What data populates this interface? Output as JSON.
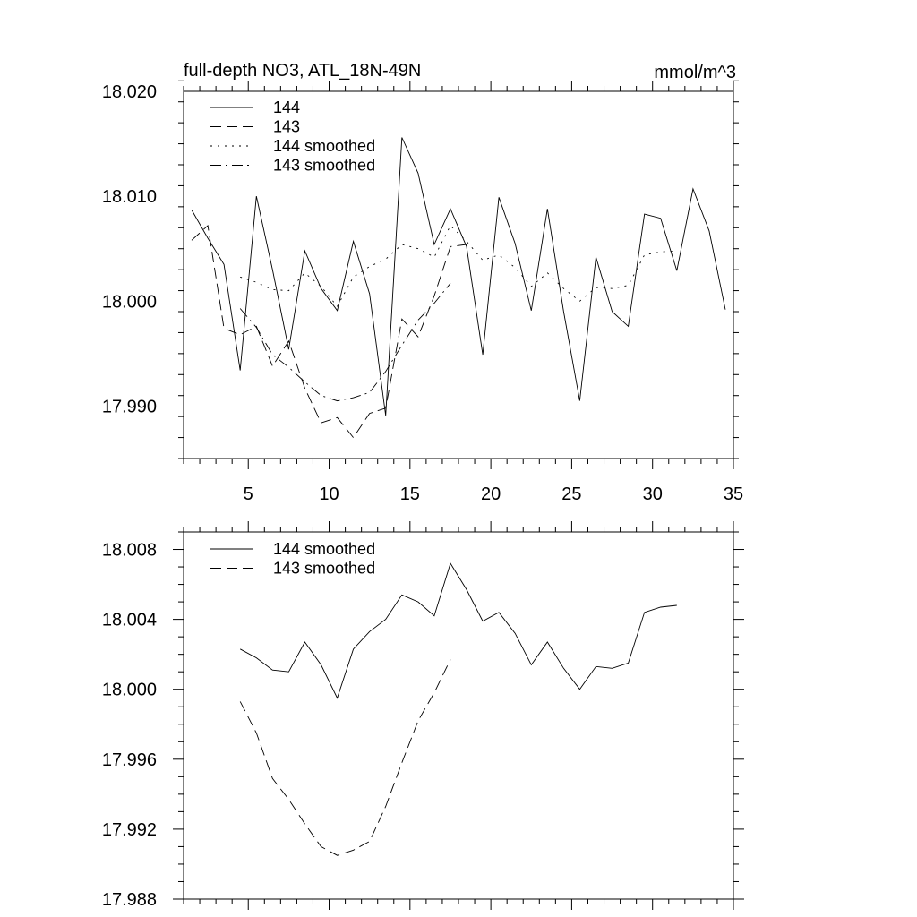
{
  "chart_data": [
    {
      "type": "line",
      "title": "full-depth NO3, ATL_18N-49N",
      "units": "mmol/m^3",
      "xlim": [
        1,
        35
      ],
      "ylim": [
        17.985,
        18.02
      ],
      "xticks": [
        "5",
        "10",
        "15",
        "20",
        "25",
        "30",
        "35"
      ],
      "yticks": [
        "17.990",
        "18.000",
        "18.010",
        "18.020"
      ],
      "legend_position": "top-left",
      "series": [
        {
          "name": "144",
          "style": "solid",
          "x": [
            1.5,
            2.5,
            3.5,
            4.5,
            5.5,
            6.5,
            7.5,
            8.5,
            9.5,
            10.5,
            11.5,
            12.5,
            13.5,
            14.5,
            15.5,
            16.5,
            17.5,
            18.5,
            19.5,
            20.5,
            21.5,
            22.5,
            23.5,
            24.5,
            25.5,
            26.5,
            27.5,
            28.5,
            29.5,
            30.5,
            31.5,
            32.5,
            33.5,
            34.5
          ],
          "values": [
            18.0087,
            18.006,
            18.0035,
            17.9934,
            18.01,
            18.003,
            17.9954,
            18.0048,
            18.0012,
            17.9991,
            18.0057,
            18.0007,
            17.9891,
            18.0156,
            18.0122,
            18.0054,
            18.0088,
            18.0052,
            17.9949,
            18.0099,
            18.0055,
            17.9991,
            18.0088,
            17.999,
            17.9905,
            18.0042,
            17.999,
            17.9976,
            18.0083,
            18.0079,
            18.0029,
            18.0107,
            18.0067,
            17.9992
          ]
        },
        {
          "name": "143",
          "style": "dashed",
          "x": [
            1.5,
            2.5,
            3.5,
            4.5,
            5.5,
            6.5,
            7.5,
            8.5,
            9.5,
            10.5,
            11.5,
            12.5,
            13.5,
            14.5,
            15.5,
            16.5,
            17.5,
            18.5
          ],
          "values": [
            18.0058,
            18.0072,
            17.9974,
            17.9968,
            17.9976,
            17.9938,
            17.9962,
            17.9917,
            17.9884,
            17.9889,
            17.987,
            17.9893,
            17.9898,
            17.9983,
            17.9966,
            18.0005,
            18.0052,
            18.0054
          ]
        },
        {
          "name": "144 smoothed",
          "style": "dotted",
          "x": [
            4.5,
            5.5,
            6.5,
            7.5,
            8.5,
            9.5,
            10.5,
            11.5,
            12.5,
            13.5,
            14.5,
            15.5,
            16.5,
            17.5,
            18.5,
            19.5,
            20.5,
            21.5,
            22.5,
            23.5,
            24.5,
            25.5,
            26.5,
            27.5,
            28.5,
            29.5,
            30.5,
            31.5
          ],
          "values": [
            18.0023,
            18.0018,
            18.0011,
            18.001,
            18.0027,
            18.0014,
            17.9995,
            18.0023,
            18.0033,
            18.004,
            18.0054,
            18.005,
            18.0042,
            18.0072,
            18.0057,
            18.0039,
            18.0044,
            18.0032,
            18.0014,
            18.0027,
            18.0012,
            18.0,
            18.0013,
            18.0012,
            18.0015,
            18.0044,
            18.0047,
            18.0048
          ]
        },
        {
          "name": "143 smoothed",
          "style": "dashdot",
          "x": [
            4.5,
            5.5,
            6.5,
            7.5,
            8.5,
            9.5,
            10.5,
            11.5,
            12.5,
            13.5,
            14.5,
            15.5,
            16.5,
            17.5
          ],
          "values": [
            17.9993,
            17.9975,
            17.9949,
            17.9937,
            17.9923,
            17.991,
            17.9905,
            17.9908,
            17.9913,
            17.9933,
            17.9958,
            17.9982,
            17.9998,
            18.0017
          ]
        }
      ]
    },
    {
      "type": "line",
      "xlim": [
        1,
        35
      ],
      "ylim": [
        17.988,
        18.009
      ],
      "yticks": [
        "17.988",
        "17.992",
        "17.996",
        "18.000",
        "18.004",
        "18.008"
      ],
      "legend_position": "top-left",
      "series": [
        {
          "name": "144 smoothed",
          "style": "solid",
          "x": [
            4.5,
            5.5,
            6.5,
            7.5,
            8.5,
            9.5,
            10.5,
            11.5,
            12.5,
            13.5,
            14.5,
            15.5,
            16.5,
            17.5,
            18.5,
            19.5,
            20.5,
            21.5,
            22.5,
            23.5,
            24.5,
            25.5,
            26.5,
            27.5,
            28.5,
            29.5,
            30.5,
            31.5
          ],
          "values": [
            18.0023,
            18.0018,
            18.0011,
            18.001,
            18.0027,
            18.0014,
            17.9995,
            18.0023,
            18.0033,
            18.004,
            18.0054,
            18.005,
            18.0042,
            18.0072,
            18.0057,
            18.0039,
            18.0044,
            18.0032,
            18.0014,
            18.0027,
            18.0012,
            18.0,
            18.0013,
            18.0012,
            18.0015,
            18.0044,
            18.0047,
            18.0048
          ]
        },
        {
          "name": "143 smoothed",
          "style": "dashed",
          "x": [
            4.5,
            5.5,
            6.5,
            7.5,
            8.5,
            9.5,
            10.5,
            11.5,
            12.5,
            13.5,
            14.5,
            15.5,
            16.5,
            17.5
          ],
          "values": [
            17.9993,
            17.9975,
            17.9949,
            17.9937,
            17.9923,
            17.991,
            17.9905,
            17.9908,
            17.9913,
            17.9933,
            17.9958,
            17.9982,
            17.9998,
            18.0017
          ]
        }
      ]
    }
  ]
}
